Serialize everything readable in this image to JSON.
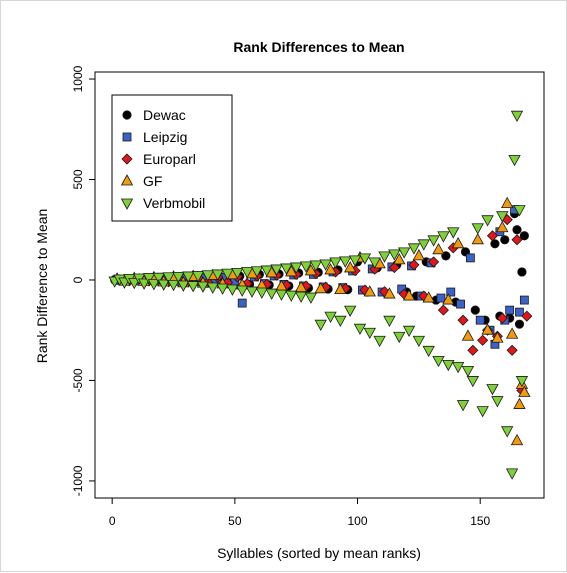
{
  "chart_data": {
    "type": "scatter",
    "title": "Rank Differences to Mean",
    "xlabel": "Syllables (sorted by mean ranks)",
    "ylabel": "Rank Difference to Mean",
    "xlim": [
      -7,
      176
    ],
    "ylim": [
      -1085,
      1035
    ],
    "xticks": [
      0,
      50,
      100,
      150
    ],
    "yticks": [
      -1000,
      -500,
      0,
      500,
      1000
    ],
    "xtick_labels": [
      "0",
      "50",
      "100",
      "150"
    ],
    "ytick_labels": [
      "-1000",
      "-500",
      "0",
      "500",
      "1000"
    ],
    "grid": false,
    "legend_position": "top-left",
    "series": [
      {
        "name": "Dewac",
        "marker": "circle",
        "color": "#000000",
        "x": [
          1,
          4,
          8,
          12,
          16,
          20,
          24,
          28,
          32,
          36,
          40,
          44,
          48,
          52,
          56,
          60,
          64,
          68,
          72,
          76,
          80,
          84,
          88,
          92,
          96,
          100,
          104,
          108,
          112,
          116,
          120,
          124,
          128,
          132,
          136,
          140,
          144,
          148,
          152,
          156,
          158,
          160,
          162,
          164,
          165,
          166,
          167,
          168
        ],
        "y": [
          2,
          -3,
          5,
          -4,
          6,
          -8,
          10,
          -6,
          12,
          -14,
          8,
          18,
          -16,
          20,
          -22,
          28,
          -25,
          30,
          -30,
          35,
          -40,
          38,
          -45,
          50,
          -48,
          90,
          -60,
          60,
          -70,
          75,
          -60,
          -80,
          90,
          -100,
          120,
          -110,
          140,
          -150,
          -200,
          180,
          -180,
          200,
          -190,
          330,
          250,
          -220,
          40,
          220
        ]
      },
      {
        "name": "Leipzig",
        "marker": "square",
        "color": "#3b62c9",
        "x": [
          2,
          6,
          10,
          14,
          18,
          22,
          26,
          30,
          34,
          38,
          42,
          46,
          50,
          53,
          58,
          62,
          66,
          70,
          74,
          78,
          82,
          86,
          90,
          94,
          98,
          102,
          106,
          110,
          114,
          118,
          122,
          126,
          130,
          134,
          138,
          142,
          146,
          150,
          154,
          156,
          158,
          160,
          162,
          164,
          166,
          168
        ],
        "y": [
          -2,
          3,
          -5,
          4,
          -6,
          5,
          -7,
          8,
          -6,
          10,
          -9,
          12,
          -10,
          -115,
          15,
          -18,
          20,
          -22,
          25,
          -30,
          28,
          -35,
          40,
          -38,
          45,
          -50,
          55,
          -60,
          65,
          -45,
          70,
          -80,
          85,
          -90,
          -60,
          -120,
          110,
          -200,
          -250,
          -320,
          240,
          -200,
          -150,
          350,
          -160,
          -100
        ]
      },
      {
        "name": "Europarl",
        "marker": "diamond",
        "color": "#e0161b",
        "x": [
          3,
          7,
          11,
          15,
          19,
          23,
          27,
          31,
          35,
          39,
          43,
          47,
          51,
          55,
          59,
          63,
          67,
          71,
          75,
          79,
          83,
          87,
          91,
          95,
          99,
          103,
          107,
          111,
          115,
          119,
          123,
          127,
          131,
          135,
          139,
          143,
          147,
          151,
          153,
          155,
          157,
          159,
          161,
          163,
          165,
          167,
          169
        ],
        "y": [
          1,
          -4,
          6,
          -5,
          7,
          -9,
          9,
          -10,
          11,
          -12,
          14,
          -13,
          16,
          -18,
          20,
          -22,
          24,
          -26,
          28,
          -30,
          32,
          -36,
          40,
          -42,
          46,
          -50,
          54,
          -58,
          62,
          -70,
          75,
          -80,
          90,
          -150,
          160,
          -200,
          -350,
          -300,
          -250,
          220,
          -280,
          -190,
          300,
          -350,
          200,
          -550,
          -180
        ]
      },
      {
        "name": "GF",
        "marker": "triangle-up",
        "color": "#f29a0f",
        "x": [
          2,
          5,
          9,
          13,
          17,
          21,
          25,
          29,
          33,
          37,
          41,
          45,
          49,
          53,
          57,
          61,
          65,
          69,
          73,
          77,
          81,
          85,
          89,
          93,
          97,
          101,
          105,
          109,
          113,
          117,
          121,
          125,
          129,
          133,
          137,
          141,
          145,
          149,
          153,
          157,
          159,
          161,
          163,
          165,
          166,
          167,
          168
        ],
        "y": [
          5,
          -6,
          8,
          -7,
          12,
          -10,
          15,
          -14,
          18,
          -16,
          22,
          -20,
          26,
          -25,
          30,
          -28,
          35,
          -32,
          40,
          -38,
          45,
          -44,
          50,
          -48,
          60,
          110,
          -60,
          80,
          -70,
          100,
          -80,
          120,
          -90,
          150,
          -100,
          180,
          -280,
          200,
          -250,
          -290,
          260,
          380,
          -270,
          -800,
          -620,
          -520,
          -560
        ]
      },
      {
        "name": "Verbmobil",
        "marker": "triangle-down",
        "color": "#7ed237",
        "x": [
          1,
          3,
          5,
          7,
          9,
          11,
          13,
          15,
          17,
          19,
          21,
          23,
          25,
          27,
          29,
          31,
          33,
          35,
          37,
          39,
          41,
          43,
          45,
          47,
          49,
          51,
          53,
          55,
          57,
          59,
          61,
          63,
          65,
          67,
          69,
          71,
          73,
          75,
          77,
          79,
          81,
          83,
          85,
          87,
          89,
          91,
          93,
          95,
          97,
          99,
          101,
          103,
          105,
          107,
          109,
          111,
          113,
          115,
          117,
          119,
          121,
          123,
          125,
          127,
          129,
          131,
          133,
          135,
          137,
          139,
          141,
          143,
          145,
          147,
          149,
          151,
          153,
          155,
          157,
          159,
          161,
          163,
          164,
          165,
          166,
          167
        ],
        "y": [
          -5,
          5,
          -10,
          8,
          -12,
          10,
          -15,
          12,
          -18,
          14,
          -20,
          16,
          -22,
          18,
          -25,
          20,
          -28,
          22,
          -30,
          26,
          -35,
          30,
          -40,
          34,
          -45,
          38,
          -50,
          42,
          -55,
          46,
          -60,
          50,
          -65,
          55,
          -70,
          60,
          -75,
          65,
          -80,
          70,
          -85,
          75,
          -220,
          80,
          -180,
          90,
          -200,
          95,
          -150,
          100,
          -240,
          110,
          -260,
          90,
          -300,
          120,
          -200,
          130,
          -280,
          140,
          -250,
          160,
          -300,
          180,
          -350,
          200,
          -400,
          220,
          -420,
          240,
          -430,
          -620,
          -450,
          -500,
          260,
          -650,
          300,
          -540,
          -600,
          320,
          -750,
          -960,
          600,
          820,
          350,
          -500
        ]
      }
    ]
  }
}
